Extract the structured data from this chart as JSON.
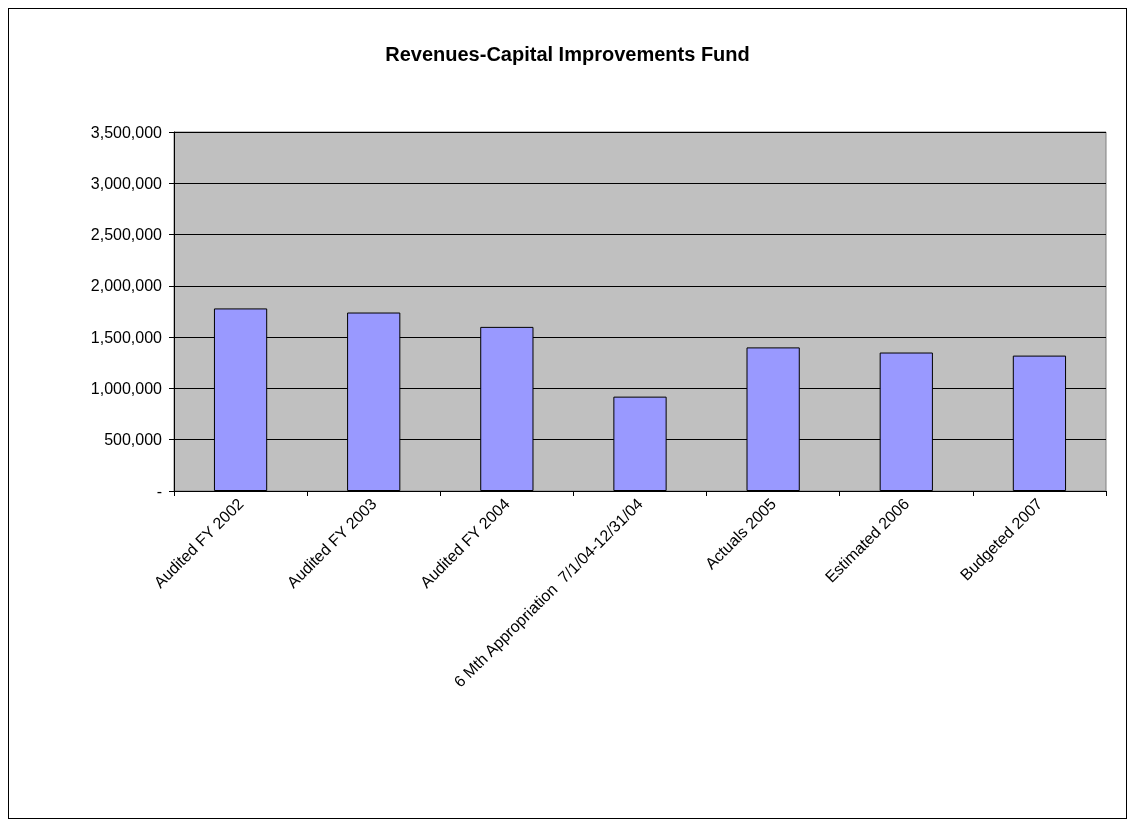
{
  "chart_data": {
    "type": "bar",
    "title": "Revenues-Capital Improvements Fund",
    "categories": [
      "Audited FY 2002",
      "Audited FY 2003",
      "Audited FY 2004",
      "6 Mth Appropriation  7/1/04-12/31/04",
      "Actuals 2005",
      "Estimated 2006",
      "Budgeted 2007"
    ],
    "values": [
      1780000,
      1740000,
      1600000,
      920000,
      1400000,
      1350000,
      1320000
    ],
    "color": "#9999ff",
    "ylim": [
      0,
      3500000
    ],
    "yticks": [
      {
        "value": 0,
        "label": "-"
      },
      {
        "value": 500000,
        "label": "500,000"
      },
      {
        "value": 1000000,
        "label": "1,000,000"
      },
      {
        "value": 1500000,
        "label": "1,500,000"
      },
      {
        "value": 2000000,
        "label": "2,000,000"
      },
      {
        "value": 2500000,
        "label": "2,500,000"
      },
      {
        "value": 3000000,
        "label": "3,000,000"
      },
      {
        "value": 3500000,
        "label": "3,500,000"
      }
    ],
    "grid": "y"
  }
}
